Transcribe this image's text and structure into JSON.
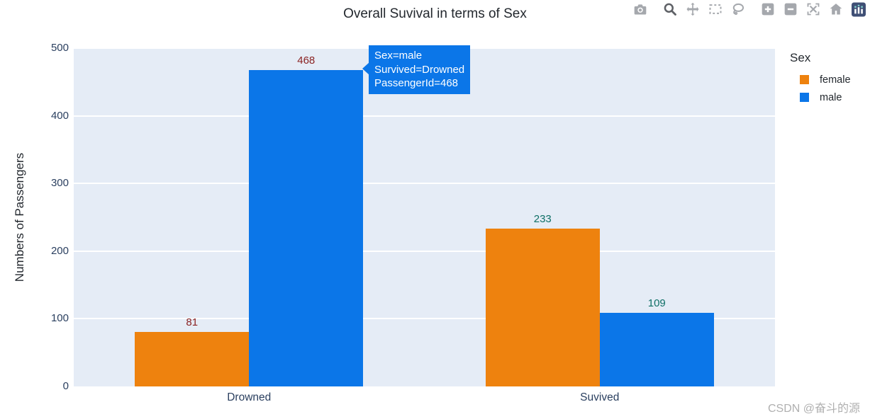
{
  "title": "Overall Suvival in terms of Sex",
  "modebar_icons": [
    "camera-icon",
    "zoom-icon",
    "pan-icon",
    "box-select-icon",
    "lasso-select-icon",
    "zoom-in-icon",
    "zoom-out-icon",
    "autoscale-icon",
    "reset-axes-icon",
    "plotly-logo-icon"
  ],
  "tooltip": {
    "lines": [
      "Sex=male",
      "Survived=Drowned",
      "PassengerId=468"
    ],
    "bg_color": "#0b76e8",
    "text_color": "#ffffff"
  },
  "legend": {
    "title": "Sex",
    "items": [
      {
        "label": "female",
        "color": "#ee820e"
      },
      {
        "label": "male",
        "color": "#0b76e8"
      }
    ]
  },
  "watermark": "CSDN @奋斗的源",
  "chart_data": {
    "type": "bar",
    "title": "Overall Suvival in terms of Sex",
    "categories": [
      "Drowned",
      "Suvived"
    ],
    "series": [
      {
        "name": "female",
        "color": "#ee820e",
        "values": [
          81,
          233
        ]
      },
      {
        "name": "male",
        "color": "#0b76e8",
        "values": [
          468,
          109
        ]
      }
    ],
    "bar_label_colors_by_category": [
      "#8b2323",
      "#0f6f66"
    ],
    "xlabel": "",
    "ylabel": "Numbers of Passengers",
    "ylim": [
      0,
      500
    ],
    "yticks": [
      0,
      100,
      200,
      300,
      400,
      500
    ],
    "grid": true,
    "plot_bg": "#e5ecf6",
    "legend_position": "right",
    "legend_title": "Sex"
  }
}
